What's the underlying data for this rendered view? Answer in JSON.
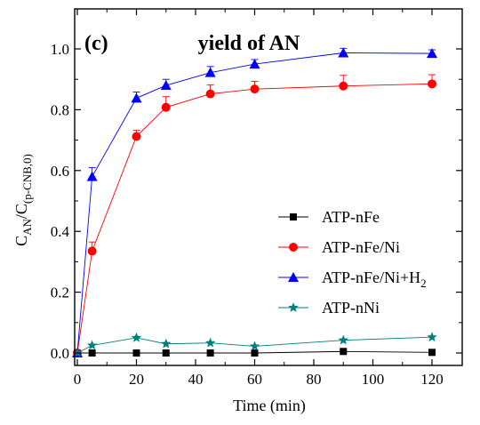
{
  "chart_data": {
    "type": "line",
    "panel_label": "(c)",
    "title": "yield of AN",
    "xlabel": "Time (min)",
    "ylabel": {
      "main": "C",
      "sub1": "AN",
      "slash": "/C",
      "sub2": "(p-CNB,0)"
    },
    "xlim": [
      0,
      130
    ],
    "ylim": [
      -0.01,
      1.1
    ],
    "xticks": [
      0,
      20,
      40,
      60,
      80,
      100,
      120
    ],
    "yticks": [
      0.0,
      0.2,
      0.4,
      0.6,
      0.8,
      1.0
    ],
    "xtick_labels": [
      "0",
      "20",
      "40",
      "60",
      "80",
      "100",
      "120"
    ],
    "ytick_labels": [
      "0.0",
      "0.2",
      "0.4",
      "0.6",
      "0.8",
      "1.0"
    ],
    "x": [
      0,
      5,
      20,
      30,
      45,
      60,
      90,
      120
    ],
    "legend_position": "center-right",
    "series": [
      {
        "name": "ATP-nFe",
        "name_sub": "",
        "marker": "square",
        "color": "#000000",
        "values": [
          0.0,
          0.0,
          0.0,
          0.0,
          0.0,
          0.0,
          0.005,
          0.002
        ],
        "errors": [
          0,
          0,
          0,
          0,
          0,
          0,
          0,
          0
        ]
      },
      {
        "name": "ATP-nFe/Ni",
        "name_sub": "",
        "marker": "circle",
        "color": "#ff0000",
        "values": [
          0.0,
          0.335,
          0.712,
          0.808,
          0.852,
          0.868,
          0.878,
          0.885
        ],
        "errors": [
          0,
          0.03,
          0.02,
          0.035,
          0.03,
          0.025,
          0.035,
          0.03
        ]
      },
      {
        "name": "ATP-nFe/Ni+H",
        "name_sub": "2",
        "marker": "triangle",
        "color": "#0000ff",
        "values": [
          0.0,
          0.58,
          0.838,
          0.88,
          0.922,
          0.95,
          0.987,
          0.985
        ],
        "errors": [
          0,
          0.03,
          0.02,
          0.02,
          0.02,
          0.015,
          0.015,
          0.012
        ]
      },
      {
        "name": "ATP-nNi",
        "name_sub": "",
        "marker": "star",
        "color": "#007f7f",
        "values": [
          0.0,
          0.025,
          0.05,
          0.03,
          0.033,
          0.022,
          0.042,
          0.052
        ],
        "errors": [
          0,
          0,
          0,
          0,
          0,
          0,
          0,
          0
        ]
      }
    ]
  }
}
